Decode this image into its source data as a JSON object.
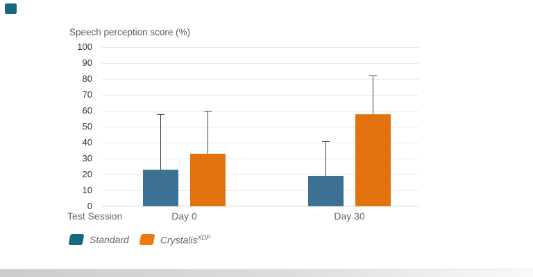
{
  "chart_data": {
    "type": "bar",
    "title": "Speech perception score (%)",
    "xlabel": "Test Session",
    "categories": [
      "Day 0",
      "Day 30"
    ],
    "series": [
      {
        "name": "Standard",
        "superscript": "",
        "values": [
          23,
          19
        ],
        "error_upper": [
          58,
          41
        ],
        "color": "#3d7092",
        "legend_color": "#16697f"
      },
      {
        "name": "Crystalis",
        "superscript": "XDP",
        "values": [
          33,
          58
        ],
        "error_upper": [
          60,
          82
        ],
        "color": "#e2720e",
        "legend_color": "#f0790f"
      }
    ],
    "ylim": [
      0,
      100
    ],
    "yticks": [
      0,
      10,
      20,
      30,
      40,
      50,
      60,
      70,
      80,
      90,
      100
    ],
    "grid": "horizontal",
    "legend_position": "bottom-left",
    "error_bars": "upper-only"
  },
  "page": {
    "background": "#ffffff",
    "corner_swatch_color": "#17697f"
  }
}
